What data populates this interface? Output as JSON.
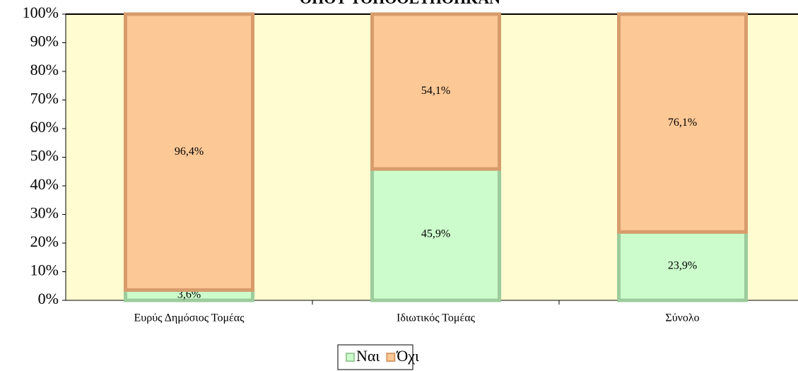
{
  "chart_data": {
    "type": "stacked_bar",
    "title": "ΟΠΟΥ ΤΟΠΟΘΕΤΗΘΗΚΑΝ",
    "categories": [
      "Ευρύς Δημόσιος Τομέας",
      "Ιδιωτικός Τομέας",
      "Σύνολο"
    ],
    "series": [
      {
        "name": "Ναι",
        "color": "#ccfccc",
        "values": [
          3.6,
          45.9,
          23.9
        ],
        "value_labels": [
          "3,6%",
          "45,9%",
          "23,9%"
        ]
      },
      {
        "name": "Όχι",
        "color": "#fcc896",
        "values": [
          96.4,
          54.1,
          76.1
        ],
        "value_labels": [
          "96,4%",
          "54,1%",
          "76,1%"
        ]
      }
    ],
    "ylim": [
      0,
      100
    ],
    "yticks": [
      {
        "value": 0,
        "label": "0%"
      },
      {
        "value": 10,
        "label": "10%"
      },
      {
        "value": 20,
        "label": "20%"
      },
      {
        "value": 30,
        "label": "30%"
      },
      {
        "value": 40,
        "label": "40%"
      },
      {
        "value": 50,
        "label": "50%"
      },
      {
        "value": 60,
        "label": "60%"
      },
      {
        "value": 70,
        "label": "70%"
      },
      {
        "value": 80,
        "label": "80%"
      },
      {
        "value": 90,
        "label": "90%"
      },
      {
        "value": 100,
        "label": "100%"
      }
    ],
    "legend": "bottom"
  }
}
